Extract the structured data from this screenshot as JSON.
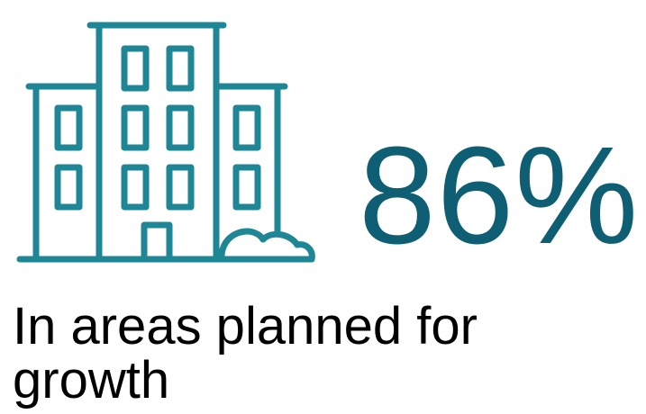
{
  "stat": {
    "value": "86%",
    "caption": "In areas planned for growth",
    "icon": "building-icon"
  },
  "colors": {
    "icon_stroke": "#1f8696",
    "value_text": "#0f5f74",
    "caption_text": "#000000",
    "background": "#ffffff"
  }
}
